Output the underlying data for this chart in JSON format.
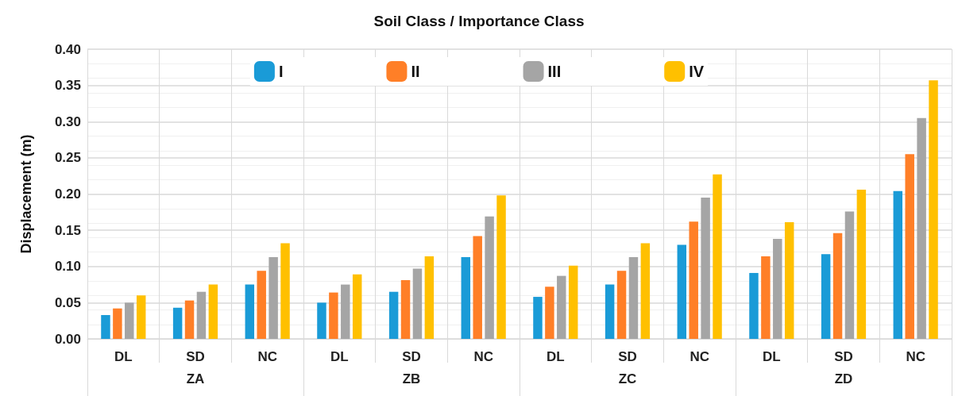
{
  "chart_data": {
    "type": "bar",
    "title": "Soil Class / Importance Class",
    "ylabel": "Displacement (m)",
    "categories": [
      "DL",
      "SD",
      "NC",
      "DL",
      "SD",
      "NC",
      "DL",
      "SD",
      "NC",
      "DL",
      "SD",
      "NC"
    ],
    "annotations": [
      "ZA",
      "ZB",
      "ZC",
      "ZD"
    ],
    "series": [
      {
        "name": "I",
        "color": "#1a9bd7",
        "values": [
          0.033,
          0.043,
          0.075,
          0.05,
          0.065,
          0.113,
          0.058,
          0.075,
          0.13,
          0.091,
          0.117,
          0.204
        ]
      },
      {
        "name": "II",
        "color": "#ff7f27",
        "values": [
          0.042,
          0.053,
          0.094,
          0.064,
          0.081,
          0.142,
          0.072,
          0.094,
          0.162,
          0.114,
          0.146,
          0.255
        ]
      },
      {
        "name": "III",
        "color": "#a5a5a5",
        "values": [
          0.05,
          0.065,
          0.113,
          0.075,
          0.097,
          0.169,
          0.087,
          0.113,
          0.195,
          0.138,
          0.176,
          0.305
        ]
      },
      {
        "name": "IV",
        "color": "#ffc000",
        "values": [
          0.06,
          0.075,
          0.132,
          0.089,
          0.114,
          0.198,
          0.101,
          0.132,
          0.227,
          0.161,
          0.206,
          0.357
        ]
      }
    ],
    "ylim": [
      0,
      0.4
    ],
    "yticks": [
      {
        "value": 0,
        "label": "0.00"
      },
      {
        "value": 0.05,
        "label": "0.05"
      },
      {
        "value": 0.1,
        "label": "0.10"
      },
      {
        "value": 0.15,
        "label": "0.15"
      },
      {
        "value": 0.2,
        "label": "0.20"
      },
      {
        "value": 0.25,
        "label": "0.25"
      },
      {
        "value": 0.3,
        "label": "0.30"
      },
      {
        "value": 0.35,
        "label": "0.35"
      },
      {
        "value": 0.4,
        "label": "0.40"
      }
    ],
    "grid": true,
    "legend": "top"
  }
}
